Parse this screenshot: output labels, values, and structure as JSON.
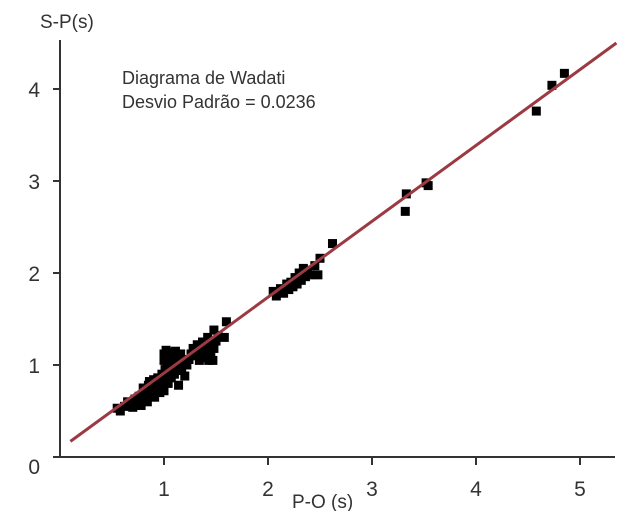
{
  "chart_data": {
    "type": "scatter",
    "ylabel": "S-P(s)",
    "xlabel": "P-O (s)",
    "annotations": [
      "Diagrama de Wadati",
      "Desvio Padrão = 0.0236"
    ],
    "xlim": [
      0,
      5.3
    ],
    "ylim": [
      0,
      4.5
    ],
    "x_ticks": [
      1,
      2,
      3,
      4,
      5
    ],
    "y_ticks": [
      0,
      1,
      2,
      3,
      4
    ],
    "grid": false,
    "colors": {
      "points": "#000000",
      "fit_line": "#9b3a42",
      "axes": "#333333"
    },
    "fit_line": {
      "x": [
        0.1,
        5.35
      ],
      "y": [
        0.17,
        4.5
      ]
    },
    "points": [
      [
        0.55,
        0.53
      ],
      [
        0.58,
        0.5
      ],
      [
        0.62,
        0.55
      ],
      [
        0.65,
        0.6
      ],
      [
        0.68,
        0.58
      ],
      [
        0.7,
        0.54
      ],
      [
        0.72,
        0.63
      ],
      [
        0.74,
        0.57
      ],
      [
        0.75,
        0.6
      ],
      [
        0.76,
        0.66
      ],
      [
        0.78,
        0.62
      ],
      [
        0.78,
        0.56
      ],
      [
        0.8,
        0.68
      ],
      [
        0.8,
        0.75
      ],
      [
        0.82,
        0.64
      ],
      [
        0.83,
        0.7
      ],
      [
        0.84,
        0.6
      ],
      [
        0.85,
        0.78
      ],
      [
        0.86,
        0.72
      ],
      [
        0.86,
        0.82
      ],
      [
        0.88,
        0.68
      ],
      [
        0.88,
        0.76
      ],
      [
        0.9,
        0.74
      ],
      [
        0.9,
        0.84
      ],
      [
        0.91,
        0.65
      ],
      [
        0.92,
        0.8
      ],
      [
        0.93,
        0.72
      ],
      [
        0.94,
        0.86
      ],
      [
        0.95,
        0.78
      ],
      [
        0.96,
        0.7
      ],
      [
        0.97,
        0.84
      ],
      [
        0.98,
        0.9
      ],
      [
        0.99,
        0.76
      ],
      [
        1.0,
        0.82
      ],
      [
        1.0,
        0.72
      ],
      [
        1.0,
        1.12
      ],
      [
        1.0,
        1.05
      ],
      [
        1.01,
        0.95
      ],
      [
        1.02,
        0.88
      ],
      [
        1.02,
        1.16
      ],
      [
        1.03,
        1.0
      ],
      [
        1.04,
        0.8
      ],
      [
        1.04,
        1.1
      ],
      [
        1.05,
        0.92
      ],
      [
        1.05,
        1.05
      ],
      [
        1.06,
        1.14
      ],
      [
        1.07,
        0.86
      ],
      [
        1.08,
        1.0
      ],
      [
        1.08,
        0.95
      ],
      [
        1.09,
        1.1
      ],
      [
        1.1,
        0.9
      ],
      [
        1.1,
        1.04
      ],
      [
        1.11,
        1.15
      ],
      [
        1.12,
        0.98
      ],
      [
        1.13,
        1.08
      ],
      [
        1.14,
        0.78
      ],
      [
        1.15,
        1.0
      ],
      [
        1.16,
        1.12
      ],
      [
        1.17,
        0.94
      ],
      [
        1.18,
        1.05
      ],
      [
        1.2,
        0.88
      ],
      [
        1.22,
        1.0
      ],
      [
        1.24,
        1.06
      ],
      [
        1.26,
        1.12
      ],
      [
        1.28,
        1.18
      ],
      [
        1.3,
        1.1
      ],
      [
        1.32,
        1.22
      ],
      [
        1.34,
        1.05
      ],
      [
        1.35,
        1.15
      ],
      [
        1.37,
        1.25
      ],
      [
        1.38,
        1.12
      ],
      [
        1.4,
        1.08
      ],
      [
        1.41,
        1.2
      ],
      [
        1.42,
        1.3
      ],
      [
        1.43,
        1.05
      ],
      [
        1.44,
        1.15
      ],
      [
        1.45,
        1.1
      ],
      [
        1.46,
        1.22
      ],
      [
        1.47,
        1.05
      ],
      [
        1.48,
        1.18
      ],
      [
        1.48,
        1.38
      ],
      [
        1.5,
        1.26
      ],
      [
        1.52,
        1.32
      ],
      [
        1.58,
        1.3
      ],
      [
        1.6,
        1.47
      ],
      [
        2.05,
        1.8
      ],
      [
        2.08,
        1.75
      ],
      [
        2.12,
        1.83
      ],
      [
        2.15,
        1.78
      ],
      [
        2.18,
        1.88
      ],
      [
        2.2,
        1.82
      ],
      [
        2.22,
        1.9
      ],
      [
        2.24,
        1.85
      ],
      [
        2.26,
        1.95
      ],
      [
        2.28,
        1.88
      ],
      [
        2.3,
        2.0
      ],
      [
        2.32,
        1.92
      ],
      [
        2.34,
        2.05
      ],
      [
        2.36,
        1.96
      ],
      [
        2.38,
        2.03
      ],
      [
        2.4,
        1.98
      ],
      [
        2.45,
        2.08
      ],
      [
        2.48,
        1.98
      ],
      [
        2.5,
        2.16
      ],
      [
        2.62,
        2.32
      ],
      [
        3.32,
        2.67
      ],
      [
        3.33,
        2.86
      ],
      [
        3.52,
        2.98
      ],
      [
        3.54,
        2.95
      ],
      [
        4.58,
        3.76
      ],
      [
        4.73,
        4.04
      ],
      [
        4.85,
        4.17
      ]
    ]
  }
}
